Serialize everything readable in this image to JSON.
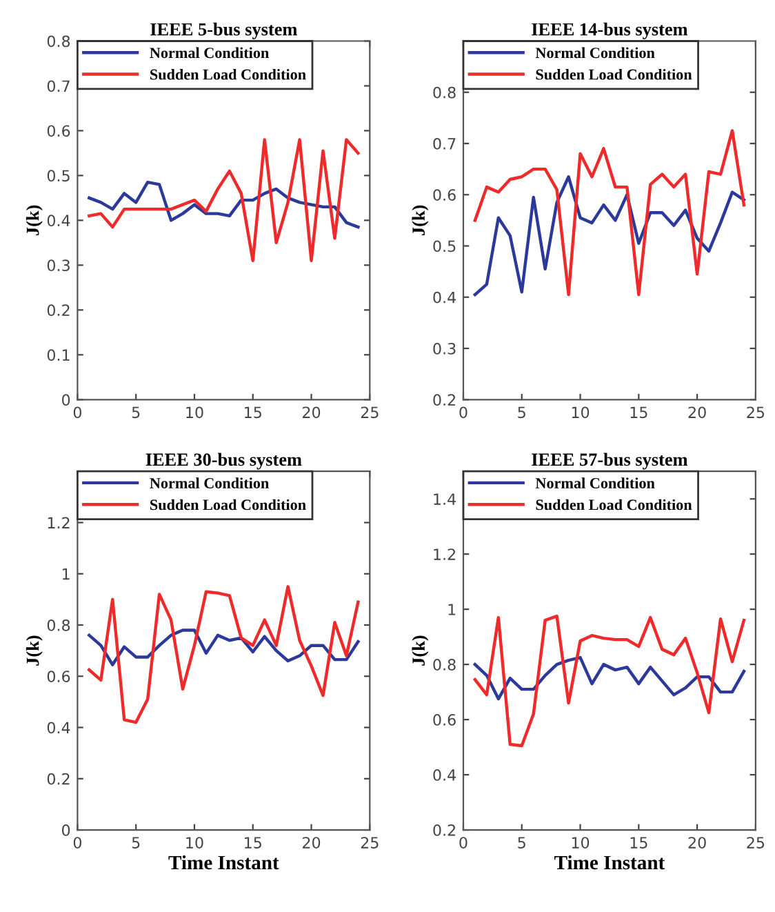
{
  "chart_data": [
    {
      "type": "line",
      "title": "IEEE 5-bus system",
      "ylabel": "J(k)",
      "x": [
        1,
        2,
        3,
        4,
        5,
        6,
        7,
        8,
        9,
        10,
        11,
        12,
        13,
        14,
        15,
        16,
        17,
        18,
        19,
        20,
        21,
        22,
        23,
        24
      ],
      "xlim": [
        0,
        25
      ],
      "xticks": [
        0,
        5,
        10,
        15,
        20,
        25
      ],
      "ylim": [
        0,
        0.8
      ],
      "yticks": [
        0,
        0.1,
        0.2,
        0.3,
        0.4,
        0.5,
        0.6,
        0.7,
        0.8
      ],
      "legend": "top left",
      "tick_labels": "xy",
      "series": [
        {
          "name": "Normal Condition",
          "color": "#2b3a9a",
          "values": [
            0.45,
            0.44,
            0.425,
            0.46,
            0.44,
            0.485,
            0.48,
            0.4,
            0.415,
            0.435,
            0.415,
            0.415,
            0.41,
            0.445,
            0.445,
            0.46,
            0.47,
            0.45,
            0.44,
            0.435,
            0.43,
            0.43,
            0.395,
            0.385
          ]
        },
        {
          "name": "Sudden Load Condition",
          "color": "#ee2a2a",
          "values": [
            0.41,
            0.415,
            0.385,
            0.425,
            0.425,
            0.425,
            0.425,
            0.425,
            0.435,
            0.445,
            0.42,
            0.47,
            0.51,
            0.46,
            0.31,
            0.58,
            0.35,
            0.44,
            0.58,
            0.31,
            0.555,
            0.36,
            0.58,
            0.55
          ]
        }
      ]
    },
    {
      "type": "line",
      "title": "IEEE 14-bus system",
      "ylabel": "J(k)",
      "x": [
        1,
        2,
        3,
        4,
        5,
        6,
        7,
        8,
        9,
        10,
        11,
        12,
        13,
        14,
        15,
        16,
        17,
        18,
        19,
        20,
        21,
        22,
        23,
        24
      ],
      "xlim": [
        0,
        25
      ],
      "xticks": [
        0,
        5,
        10,
        15,
        20,
        25
      ],
      "ylim": [
        0.2,
        0.9
      ],
      "yticks": [
        0.2,
        0.3,
        0.4,
        0.5,
        0.6,
        0.7,
        0.8
      ],
      "legend": "top left",
      "series": [
        {
          "name": "Normal Condition",
          "color": "#2b3a9a",
          "values": [
            0.405,
            0.425,
            0.555,
            0.52,
            0.41,
            0.595,
            0.455,
            0.585,
            0.635,
            0.555,
            0.545,
            0.58,
            0.55,
            0.6,
            0.505,
            0.565,
            0.565,
            0.54,
            0.57,
            0.515,
            0.49,
            0.545,
            0.605,
            0.59
          ]
        },
        {
          "name": "Sudden Load Condition",
          "color": "#ee2a2a",
          "values": [
            0.55,
            0.615,
            0.605,
            0.63,
            0.635,
            0.65,
            0.65,
            0.61,
            0.405,
            0.68,
            0.635,
            0.69,
            0.615,
            0.615,
            0.405,
            0.62,
            0.64,
            0.615,
            0.64,
            0.445,
            0.645,
            0.64,
            0.725,
            0.58
          ]
        }
      ]
    },
    {
      "type": "line",
      "title": "IEEE 30-bus system",
      "ylabel": "J(k)",
      "xlabel": "Time Instant",
      "x": [
        1,
        2,
        3,
        4,
        5,
        6,
        7,
        8,
        9,
        10,
        11,
        12,
        13,
        14,
        15,
        16,
        17,
        18,
        19,
        20,
        21,
        22,
        23,
        24
      ],
      "xlim": [
        0,
        25
      ],
      "xticks": [
        0,
        5,
        10,
        15,
        20,
        25
      ],
      "ylim": [
        0,
        1.4
      ],
      "yticks": [
        0,
        0.2,
        0.4,
        0.6,
        0.8,
        1,
        1.2
      ],
      "legend": "top left",
      "series": [
        {
          "name": "Normal Condition",
          "color": "#2b3a9a",
          "values": [
            0.76,
            0.72,
            0.645,
            0.715,
            0.675,
            0.675,
            0.72,
            0.76,
            0.78,
            0.78,
            0.69,
            0.76,
            0.74,
            0.75,
            0.695,
            0.755,
            0.7,
            0.66,
            0.68,
            0.72,
            0.72,
            0.665,
            0.665,
            0.735
          ]
        },
        {
          "name": "Sudden Load Condition",
          "color": "#ee2a2a",
          "values": [
            0.625,
            0.585,
            0.9,
            0.43,
            0.42,
            0.51,
            0.92,
            0.82,
            0.55,
            0.72,
            0.93,
            0.925,
            0.915,
            0.75,
            0.72,
            0.82,
            0.72,
            0.95,
            0.74,
            0.64,
            0.525,
            0.81,
            0.68,
            0.89
          ]
        }
      ]
    },
    {
      "type": "line",
      "title": "IEEE 57-bus system",
      "ylabel": "J(k)",
      "xlabel": "Time Instant",
      "x": [
        1,
        2,
        3,
        4,
        5,
        6,
        7,
        8,
        9,
        10,
        11,
        12,
        13,
        14,
        15,
        16,
        17,
        18,
        19,
        20,
        21,
        22,
        23,
        24
      ],
      "xlim": [
        0,
        25
      ],
      "xticks": [
        0,
        5,
        10,
        15,
        20,
        25
      ],
      "ylim": [
        0.2,
        1.5
      ],
      "yticks": [
        0.2,
        0.4,
        0.6,
        0.8,
        1,
        1.2,
        1.4
      ],
      "legend": "top left",
      "series": [
        {
          "name": "Normal Condition",
          "color": "#2b3a9a",
          "values": [
            0.8,
            0.76,
            0.675,
            0.75,
            0.71,
            0.71,
            0.76,
            0.8,
            0.815,
            0.825,
            0.73,
            0.8,
            0.78,
            0.79,
            0.73,
            0.79,
            0.74,
            0.69,
            0.715,
            0.755,
            0.755,
            0.7,
            0.7,
            0.775
          ]
        },
        {
          "name": "Sudden Load Condition",
          "color": "#ee2a2a",
          "values": [
            0.745,
            0.69,
            0.97,
            0.51,
            0.505,
            0.62,
            0.96,
            0.975,
            0.66,
            0.885,
            0.905,
            0.895,
            0.89,
            0.89,
            0.865,
            0.97,
            0.855,
            0.835,
            0.895,
            0.77,
            0.625,
            0.965,
            0.81,
            0.96
          ]
        }
      ]
    }
  ]
}
